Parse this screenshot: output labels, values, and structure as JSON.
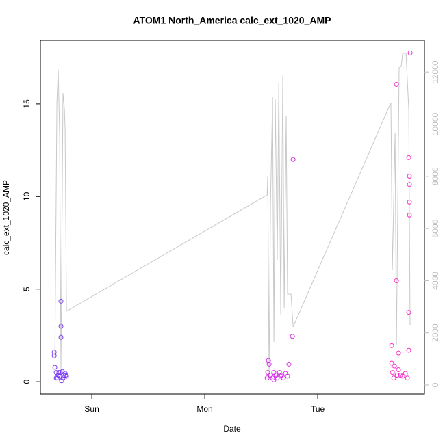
{
  "chart_data": {
    "type": "scatter",
    "title": "ATOM1 North_America calc_ext_1020_AMP",
    "xlabel": "Date",
    "ylabel": "calc_ext_1020_AMP",
    "xlim": [
      -0.455,
      2.945
    ],
    "xticks": [
      {
        "value": 0,
        "label": "Sun"
      },
      {
        "value": 1,
        "label": "Mon"
      },
      {
        "value": 2,
        "label": "Tue"
      }
    ],
    "ylim": [
      -0.66,
      18.43
    ],
    "yticks": [
      0,
      5,
      10,
      15
    ],
    "y2lim": [
      -341,
      13211
    ],
    "y2ticks": [
      0,
      2000,
      4000,
      6000,
      8000,
      10000,
      12000
    ],
    "series": [
      {
        "color": "#7b3cf5",
        "x": [
          -0.333,
          -0.333,
          -0.327,
          -0.315,
          -0.315,
          -0.297,
          -0.285,
          -0.273,
          -0.273,
          -0.273,
          -0.267,
          -0.261,
          -0.248,
          -0.236,
          -0.224,
          -0.303,
          -0.279,
          -0.255,
          -0.23,
          -0.291
        ],
        "values": [
          1.6,
          1.4,
          0.78,
          0.5,
          0.2,
          0.35,
          0.3,
          4.35,
          3.0,
          2.4,
          0.05,
          0.55,
          0.35,
          0.45,
          0.3,
          0.2,
          0.5,
          0.2,
          0.35,
          0.5
        ]
      },
      {
        "color": "#d42ee6",
        "x": [
          1.552,
          1.558,
          1.564,
          1.57,
          1.582,
          1.6,
          1.612,
          1.63,
          1.642,
          1.661,
          1.679,
          1.697,
          1.715,
          1.733,
          1.745,
          1.776,
          1.782,
          1.673,
          1.612
        ],
        "values": [
          0.2,
          0.5,
          1.15,
          0.95,
          0.35,
          0.2,
          0.5,
          0.35,
          0.2,
          0.5,
          0.35,
          0.2,
          0.45,
          0.3,
          0.95,
          2.45,
          12.0,
          0.3,
          0.1
        ]
      },
      {
        "color": "#f52ec8",
        "x": [
          2.655,
          2.655,
          2.661,
          2.679,
          2.697,
          2.697,
          2.715,
          2.715,
          2.733,
          2.752,
          2.776,
          2.794,
          2.806,
          2.812,
          2.812,
          2.812,
          2.812,
          2.806,
          2.806,
          2.818,
          2.673,
          2.703
        ],
        "values": [
          1.95,
          1.0,
          0.5,
          0.85,
          16.05,
          5.45,
          1.55,
          0.65,
          0.35,
          0.3,
          0.45,
          0.2,
          12.1,
          11.1,
          10.65,
          9.7,
          9.0,
          3.75,
          1.7,
          17.75,
          0.2,
          0.35
        ]
      }
    ],
    "line": {
      "color": "#c8c8c8",
      "axis": "y2",
      "x": [
        -0.327,
        -0.309,
        -0.297,
        -0.285,
        -0.273,
        -0.255,
        -0.242,
        -0.236,
        -0.224,
        1.552,
        1.558,
        1.57,
        1.582,
        1.6,
        1.612,
        1.624,
        1.642,
        1.655,
        1.673,
        1.691,
        1.703,
        1.721,
        1.733,
        1.752,
        1.764,
        1.782,
        2.648,
        2.661,
        2.685,
        2.697,
        2.721,
        2.739,
        2.752,
        2.782,
        2.806,
        2.818
      ],
      "values": [
        996,
        10826,
        12058,
        9515,
        603,
        11193,
        10564,
        9777,
        2831,
        7287,
        7995,
        341,
        6894,
        11035,
        1651,
        10957,
        4797,
        11612,
        2700,
        11874,
        2962,
        10301,
        3486,
        3486,
        3486,
        2228,
        10826,
        4404,
        9646,
        1520,
        12162,
        12215,
        12713,
        12713,
        10563,
        2307
      ]
    }
  }
}
